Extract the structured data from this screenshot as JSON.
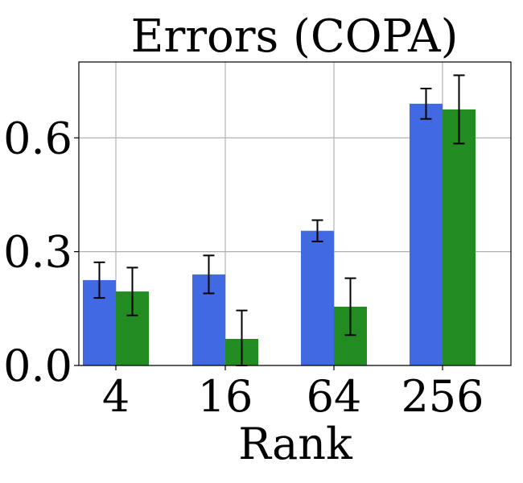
{
  "chart_data": {
    "type": "bar",
    "title": "Errors (COPA)",
    "xlabel": "Rank",
    "ylabel": "",
    "categories": [
      "4",
      "16",
      "64",
      "256"
    ],
    "series": [
      {
        "color": "#4169e1",
        "values": [
          0.225,
          0.24,
          0.355,
          0.69
        ],
        "errors": [
          0.047,
          0.05,
          0.028,
          0.04
        ]
      },
      {
        "color": "#228b22",
        "values": [
          0.195,
          0.07,
          0.155,
          0.675
        ],
        "errors": [
          0.063,
          0.075,
          0.075,
          0.09
        ]
      }
    ],
    "ylim": [
      0,
      0.8
    ],
    "yticks": [
      0.0,
      0.3,
      0.6
    ],
    "ytick_labels": [
      "0.0",
      "0.3",
      "0.6"
    ],
    "grid": true,
    "legend": "none"
  }
}
